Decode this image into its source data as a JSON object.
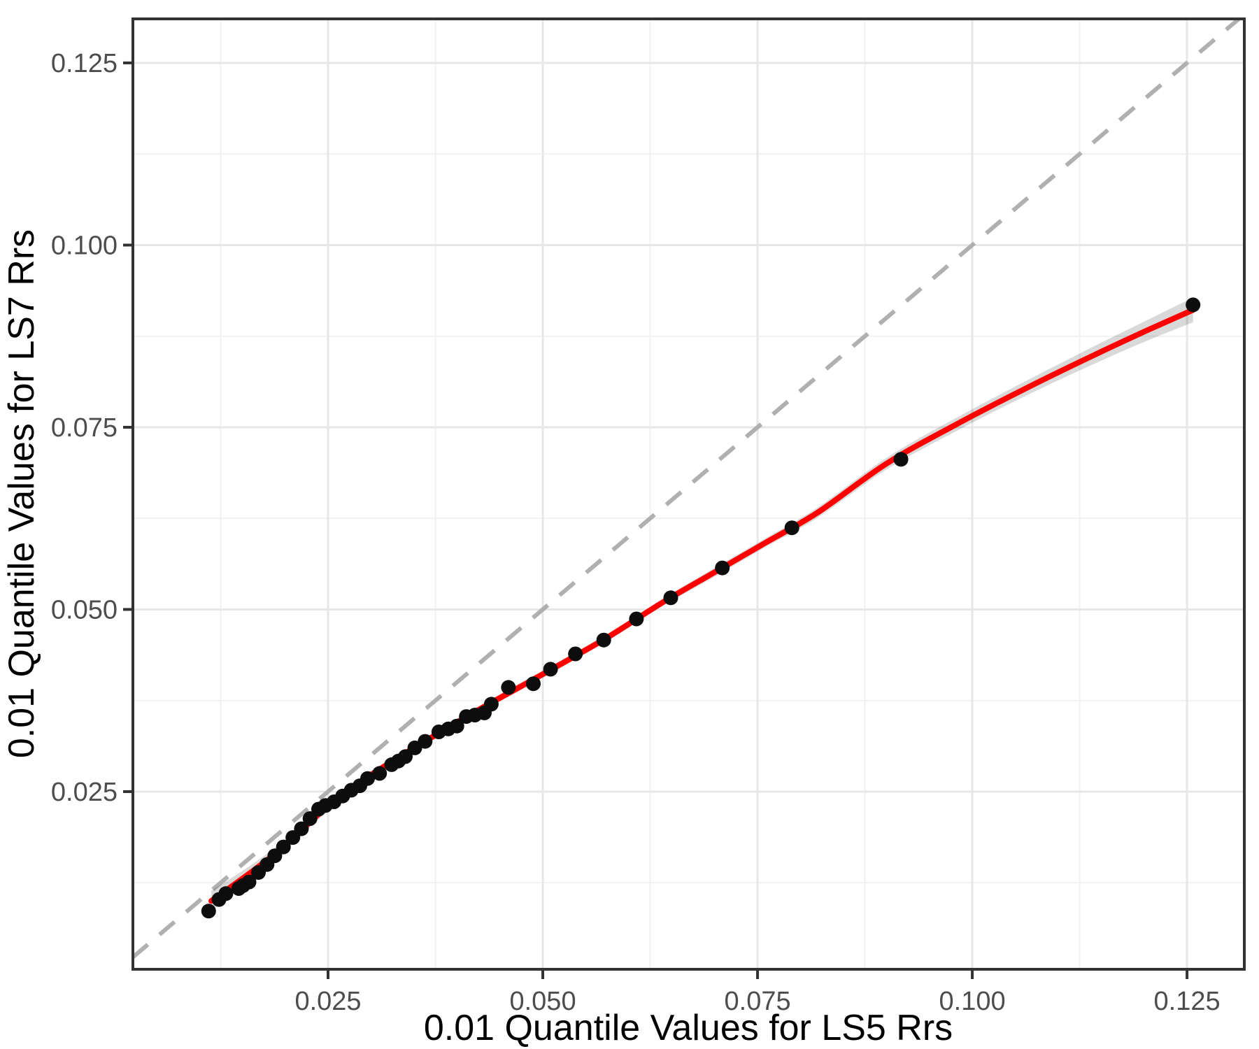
{
  "figure": {
    "kind": "ggplot-style QQ scatter plot",
    "background_color": "#ffffff"
  },
  "chart_data": {
    "type": "scatter",
    "title": "",
    "xlabel": "0.01 Quantile Values for LS5 Rrs",
    "ylabel": "0.01 Quantile Values for LS7 Rrs",
    "xlim": [
      0.00228,
      0.13167
    ],
    "ylim": [
      0.00062,
      0.13104
    ],
    "x_ticks": [
      0.025,
      0.05,
      0.075,
      0.1,
      0.125
    ],
    "x_tick_labels": [
      "0.025",
      "0.050",
      "0.075",
      "0.100",
      "0.125"
    ],
    "y_ticks": [
      0.025,
      0.05,
      0.075,
      0.1,
      0.125
    ],
    "y_tick_labels": [
      "0.025",
      "0.050",
      "0.075",
      "0.100",
      "0.125"
    ],
    "x_minor_ticks": [
      0.0125,
      0.0375,
      0.0625,
      0.0875,
      0.1125
    ],
    "y_minor_ticks": [
      0.0125,
      0.0375,
      0.0625,
      0.0875,
      0.1125
    ],
    "grid": "major and minor, light gray on white",
    "legend_position": "none",
    "points": [
      [
        0.0111,
        0.0086
      ],
      [
        0.0123,
        0.0102
      ],
      [
        0.0131,
        0.011
      ],
      [
        0.0146,
        0.0117
      ],
      [
        0.0151,
        0.0121
      ],
      [
        0.0158,
        0.0126
      ],
      [
        0.0169,
        0.0139
      ],
      [
        0.0179,
        0.015
      ],
      [
        0.0188,
        0.0162
      ],
      [
        0.0198,
        0.0174
      ],
      [
        0.0209,
        0.0187
      ],
      [
        0.0219,
        0.0199
      ],
      [
        0.0229,
        0.0213
      ],
      [
        0.0239,
        0.0226
      ],
      [
        0.0247,
        0.0231
      ],
      [
        0.0257,
        0.0236
      ],
      [
        0.0267,
        0.0244
      ],
      [
        0.0277,
        0.0252
      ],
      [
        0.0287,
        0.0258
      ],
      [
        0.0296,
        0.0268
      ],
      [
        0.031,
        0.0275
      ],
      [
        0.0324,
        0.0287
      ],
      [
        0.0332,
        0.0292
      ],
      [
        0.034,
        0.0298
      ],
      [
        0.0351,
        0.031
      ],
      [
        0.0363,
        0.0319
      ],
      [
        0.0379,
        0.0332
      ],
      [
        0.039,
        0.0336
      ],
      [
        0.04,
        0.034
      ],
      [
        0.0411,
        0.0353
      ],
      [
        0.0421,
        0.0355
      ],
      [
        0.0432,
        0.0358
      ],
      [
        0.044,
        0.037
      ],
      [
        0.046,
        0.0393
      ],
      [
        0.0489,
        0.0398
      ],
      [
        0.0509,
        0.0418
      ],
      [
        0.0538,
        0.0439
      ],
      [
        0.0571,
        0.0458
      ],
      [
        0.0609,
        0.0487
      ],
      [
        0.0649,
        0.0516
      ],
      [
        0.0709,
        0.0557
      ],
      [
        0.079,
        0.0612
      ],
      [
        0.0917,
        0.0706
      ],
      [
        0.1257,
        0.0918
      ]
    ],
    "identity_line": {
      "slope": 1,
      "intercept": 0,
      "style": "dashed",
      "color": "#b0b0b0"
    },
    "smooth_line": {
      "name": "loess fit",
      "color": "#ff0000",
      "x": [
        0.0114,
        0.016,
        0.02,
        0.024,
        0.028,
        0.032,
        0.036,
        0.04,
        0.044,
        0.048,
        0.053,
        0.058,
        0.064,
        0.07,
        0.076,
        0.082,
        0.09,
        0.098,
        0.106,
        0.114,
        0.12,
        0.1257
      ],
      "y": [
        0.01,
        0.0139,
        0.0176,
        0.022,
        0.0257,
        0.0288,
        0.0317,
        0.0345,
        0.0372,
        0.0398,
        0.0431,
        0.0465,
        0.051,
        0.0551,
        0.0592,
        0.0633,
        0.07,
        0.0753,
        0.0802,
        0.0848,
        0.0881,
        0.0911
      ],
      "ribbon_halfwidth": [
        0.0014,
        0.001,
        0.0008,
        0.0007,
        0.0006,
        0.0005,
        0.0005,
        0.0005,
        0.0005,
        0.0005,
        0.0005,
        0.0005,
        0.0005,
        0.0006,
        0.0006,
        0.0007,
        0.0008,
        0.0009,
        0.001,
        0.0012,
        0.0014,
        0.0017
      ]
    },
    "colors": {
      "point": "#0d0d0d",
      "smooth": "#ff0000",
      "ribbon": "rgba(0,0,0,0.15)",
      "identity": "#b0b0b0",
      "grid_major": "#e7e7e7",
      "grid_minor": "#f1f1f1",
      "panel_border": "#333333",
      "tick_mark": "#333333",
      "tick_text": "#4d4d4d",
      "axis_title_text": "#000000"
    }
  }
}
